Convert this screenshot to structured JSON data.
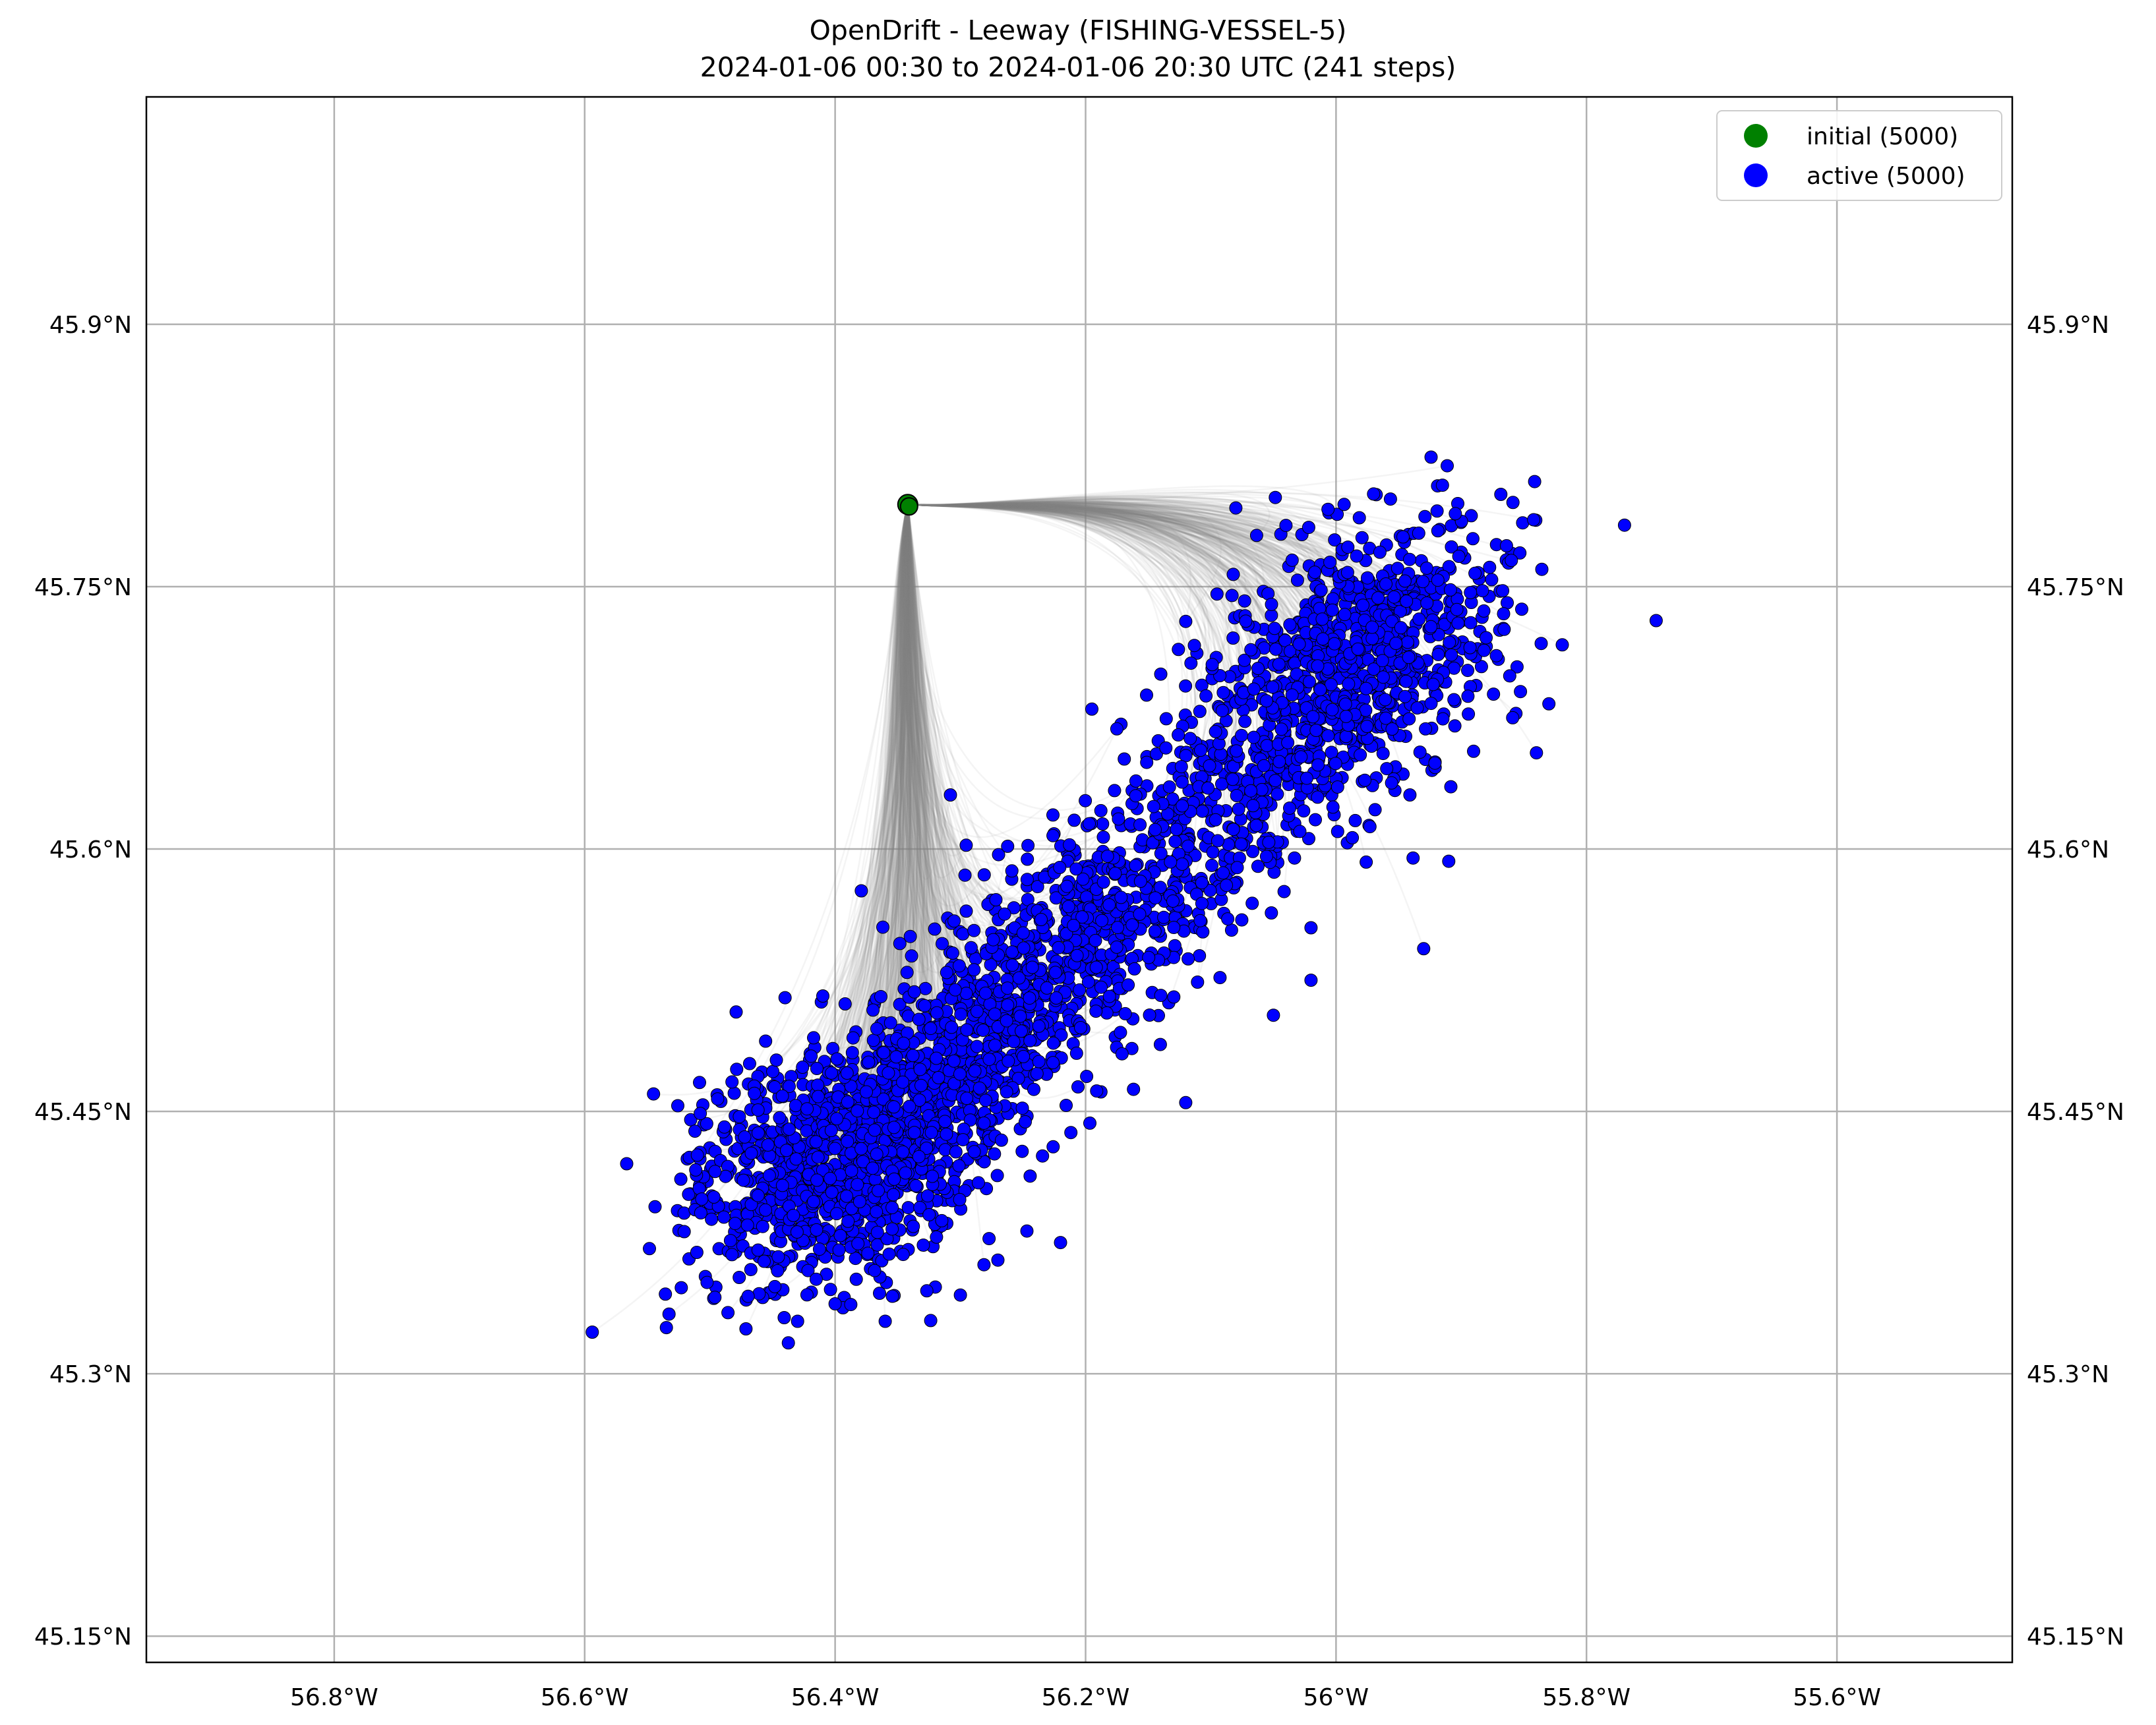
{
  "chart_data": {
    "type": "scatter",
    "title": "OpenDrift - Leeway (FISHING-VESSEL-5)",
    "subtitle": "2024-01-06 00:30 to 2024-01-06 20:30 UTC (241 steps)",
    "xlim": [
      -56.95,
      -55.46
    ],
    "ylim": [
      45.135,
      46.03
    ],
    "x_ticks": [
      -56.8,
      -56.6,
      -56.4,
      -56.2,
      -56.0,
      -55.8,
      -55.6
    ],
    "x_tick_labels": [
      "56.8°W",
      "56.6°W",
      "56.4°W",
      "56.2°W",
      "56°W",
      "55.8°W",
      "55.6°W"
    ],
    "y_ticks": [
      45.15,
      45.3,
      45.45,
      45.6,
      45.75,
      45.9
    ],
    "y_tick_labels": [
      "45.15°N",
      "45.3°N",
      "45.45°N",
      "45.6°N",
      "45.75°N",
      "45.9°N"
    ],
    "grid": true,
    "legend_position": "top-right",
    "colors": {
      "initial": "#008000",
      "active": "#0000ff",
      "trajectory": "#808080",
      "grid": "#b0b0b0"
    },
    "series": [
      {
        "name": "initial (5000)",
        "kind": "start-point",
        "points": [
          [
            -56.342,
            45.797
          ]
        ]
      },
      {
        "name": "active (5000)",
        "kind": "particle-cloud",
        "clusters": [
          {
            "center": [
              -56.39,
              45.425
            ],
            "spread": [
              0.06,
              0.035
            ],
            "weight": 0.36
          },
          {
            "center": [
              -56.28,
              45.49
            ],
            "spread": [
              0.05,
              0.03
            ],
            "weight": 0.14
          },
          {
            "center": [
              -56.19,
              45.56
            ],
            "spread": [
              0.05,
              0.03
            ],
            "weight": 0.14
          },
          {
            "center": [
              -56.08,
              45.63
            ],
            "spread": [
              0.05,
              0.03
            ],
            "weight": 0.1
          },
          {
            "center": [
              -55.98,
              45.71
            ],
            "spread": [
              0.055,
              0.035
            ],
            "weight": 0.26
          }
        ],
        "sample_points": [
          [
            -56.545,
            45.46
          ],
          [
            -56.51,
            45.425
          ],
          [
            -56.47,
            45.385
          ],
          [
            -56.43,
            45.33
          ],
          [
            -56.36,
            45.33
          ],
          [
            -56.4,
            45.34
          ],
          [
            -56.3,
            45.345
          ],
          [
            -56.27,
            45.365
          ],
          [
            -56.22,
            45.375
          ],
          [
            -56.12,
            45.455
          ],
          [
            -56.44,
            45.515
          ],
          [
            -56.34,
            45.55
          ],
          [
            -56.195,
            45.68
          ],
          [
            -56.14,
            45.7
          ],
          [
            -56.08,
            45.795
          ],
          [
            -56.04,
            45.785
          ],
          [
            -55.97,
            45.803
          ],
          [
            -55.915,
            45.808
          ],
          [
            -55.86,
            45.765
          ],
          [
            -55.83,
            45.683
          ],
          [
            -55.84,
            45.655
          ],
          [
            -55.91,
            45.593
          ],
          [
            -55.93,
            45.543
          ],
          [
            -56.02,
            45.555
          ],
          [
            -56.02,
            45.525
          ],
          [
            -56.05,
            45.505
          ]
        ]
      },
      {
        "name": "",
        "kind": "trajectories",
        "start": [
          -56.342,
          45.797
        ]
      }
    ]
  }
}
